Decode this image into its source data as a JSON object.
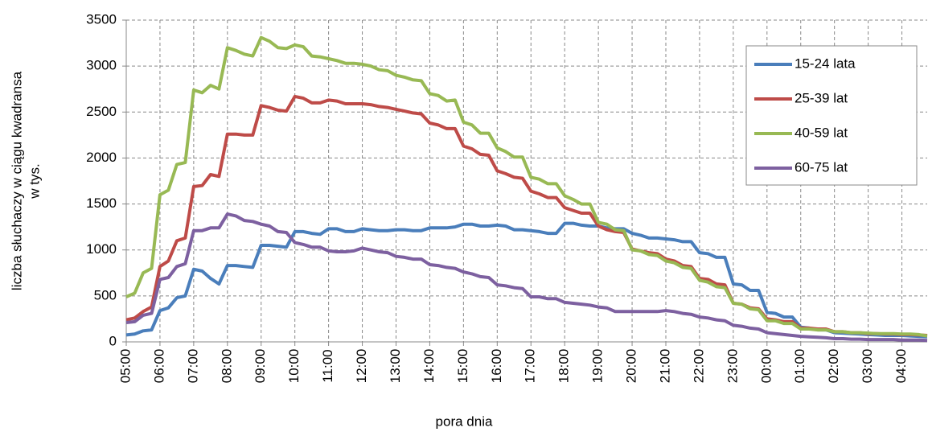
{
  "chart_data": {
    "type": "line",
    "y_label": [
      "liczba słuchaczy w ciągu kwadransa",
      "w  tys."
    ],
    "x_label": "pora dnia",
    "categories": [
      "05:00",
      null,
      null,
      null,
      "06:00",
      null,
      null,
      null,
      "07:00",
      null,
      null,
      null,
      "08:00",
      null,
      null,
      null,
      "09:00",
      null,
      null,
      null,
      "10:00",
      null,
      null,
      null,
      "11:00",
      null,
      null,
      null,
      "12:00",
      null,
      null,
      null,
      "13:00",
      null,
      null,
      null,
      "14:00",
      null,
      null,
      null,
      "15:00",
      null,
      null,
      null,
      "16:00",
      null,
      null,
      null,
      "17:00",
      null,
      null,
      null,
      "18:00",
      null,
      null,
      null,
      "19:00",
      null,
      null,
      null,
      "20:00",
      null,
      null,
      null,
      "21:00",
      null,
      null,
      null,
      "22:00",
      null,
      null,
      null,
      "23:00",
      null,
      null,
      null,
      "00:00",
      null,
      null,
      null,
      "01:00",
      null,
      null,
      null,
      "02:00",
      null,
      null,
      null,
      "03:00",
      null,
      null,
      null,
      "04:00",
      null,
      null,
      null
    ],
    "series": [
      {
        "name": "15-24 lata",
        "color": "#4a7ebb",
        "values": [
          75,
          85,
          120,
          130,
          340,
          370,
          480,
          500,
          790,
          770,
          690,
          630,
          830,
          830,
          820,
          810,
          1050,
          1050,
          1040,
          1030,
          1200,
          1200,
          1180,
          1170,
          1230,
          1230,
          1200,
          1200,
          1230,
          1220,
          1210,
          1210,
          1220,
          1220,
          1210,
          1210,
          1240,
          1240,
          1240,
          1250,
          1280,
          1280,
          1260,
          1260,
          1270,
          1260,
          1220,
          1220,
          1210,
          1200,
          1180,
          1180,
          1290,
          1290,
          1270,
          1260,
          1260,
          1240,
          1230,
          1230,
          1180,
          1160,
          1130,
          1130,
          1120,
          1110,
          1090,
          1090,
          970,
          960,
          920,
          920,
          630,
          620,
          560,
          560,
          320,
          310,
          270,
          270,
          160,
          150,
          130,
          130,
          100,
          95,
          90,
          85,
          80,
          75,
          70,
          70,
          70,
          65,
          60,
          55
        ]
      },
      {
        "name": "25-39 lat",
        "color": "#be4b48",
        "values": [
          240,
          260,
          330,
          380,
          820,
          880,
          1100,
          1130,
          1690,
          1700,
          1820,
          1800,
          2260,
          2260,
          2250,
          2250,
          2570,
          2550,
          2520,
          2510,
          2670,
          2650,
          2600,
          2600,
          2630,
          2620,
          2590,
          2590,
          2590,
          2580,
          2560,
          2550,
          2530,
          2510,
          2490,
          2480,
          2380,
          2360,
          2320,
          2320,
          2130,
          2100,
          2040,
          2030,
          1860,
          1830,
          1790,
          1780,
          1640,
          1610,
          1570,
          1570,
          1460,
          1430,
          1400,
          1400,
          1260,
          1220,
          1200,
          1190,
          1010,
          990,
          970,
          960,
          900,
          880,
          830,
          820,
          690,
          680,
          630,
          620,
          420,
          410,
          370,
          360,
          250,
          240,
          220,
          220,
          150,
          150,
          140,
          140,
          110,
          110,
          100,
          100,
          90,
          90,
          85,
          85,
          80,
          80,
          75,
          70
        ]
      },
      {
        "name": "40-59 lat",
        "color": "#98b954",
        "values": [
          490,
          530,
          750,
          800,
          1600,
          1650,
          1930,
          1950,
          2740,
          2710,
          2790,
          2750,
          3200,
          3170,
          3130,
          3110,
          3310,
          3270,
          3200,
          3190,
          3230,
          3210,
          3110,
          3100,
          3080,
          3060,
          3030,
          3030,
          3020,
          3000,
          2960,
          2950,
          2900,
          2880,
          2850,
          2840,
          2700,
          2680,
          2620,
          2630,
          2390,
          2360,
          2270,
          2270,
          2110,
          2070,
          2010,
          2010,
          1790,
          1770,
          1720,
          1720,
          1590,
          1550,
          1500,
          1500,
          1300,
          1280,
          1220,
          1210,
          1000,
          990,
          950,
          940,
          880,
          860,
          810,
          800,
          670,
          650,
          600,
          590,
          420,
          410,
          360,
          350,
          230,
          230,
          200,
          200,
          140,
          140,
          130,
          130,
          110,
          110,
          100,
          100,
          95,
          90,
          90,
          90,
          85,
          85,
          80,
          65
        ]
      },
      {
        "name": "60-75 lat",
        "color": "#7d60a0",
        "values": [
          210,
          220,
          290,
          310,
          680,
          700,
          820,
          850,
          1210,
          1210,
          1240,
          1240,
          1390,
          1370,
          1320,
          1310,
          1280,
          1260,
          1200,
          1190,
          1080,
          1060,
          1030,
          1030,
          990,
          980,
          980,
          990,
          1020,
          1000,
          980,
          970,
          930,
          920,
          900,
          900,
          840,
          830,
          810,
          800,
          760,
          740,
          710,
          700,
          620,
          610,
          590,
          580,
          490,
          490,
          470,
          470,
          430,
          420,
          410,
          400,
          380,
          370,
          330,
          330,
          330,
          330,
          330,
          330,
          340,
          330,
          310,
          300,
          270,
          260,
          240,
          230,
          180,
          170,
          150,
          140,
          100,
          90,
          80,
          70,
          60,
          55,
          50,
          45,
          35,
          35,
          30,
          30,
          25,
          25,
          25,
          25,
          20,
          20,
          20,
          15
        ]
      }
    ],
    "ylim": [
      0,
      3500
    ],
    "yticks": [
      0,
      500,
      1000,
      1500,
      2000,
      2500,
      3000,
      3500
    ],
    "grid": true,
    "legend": "upper right"
  }
}
